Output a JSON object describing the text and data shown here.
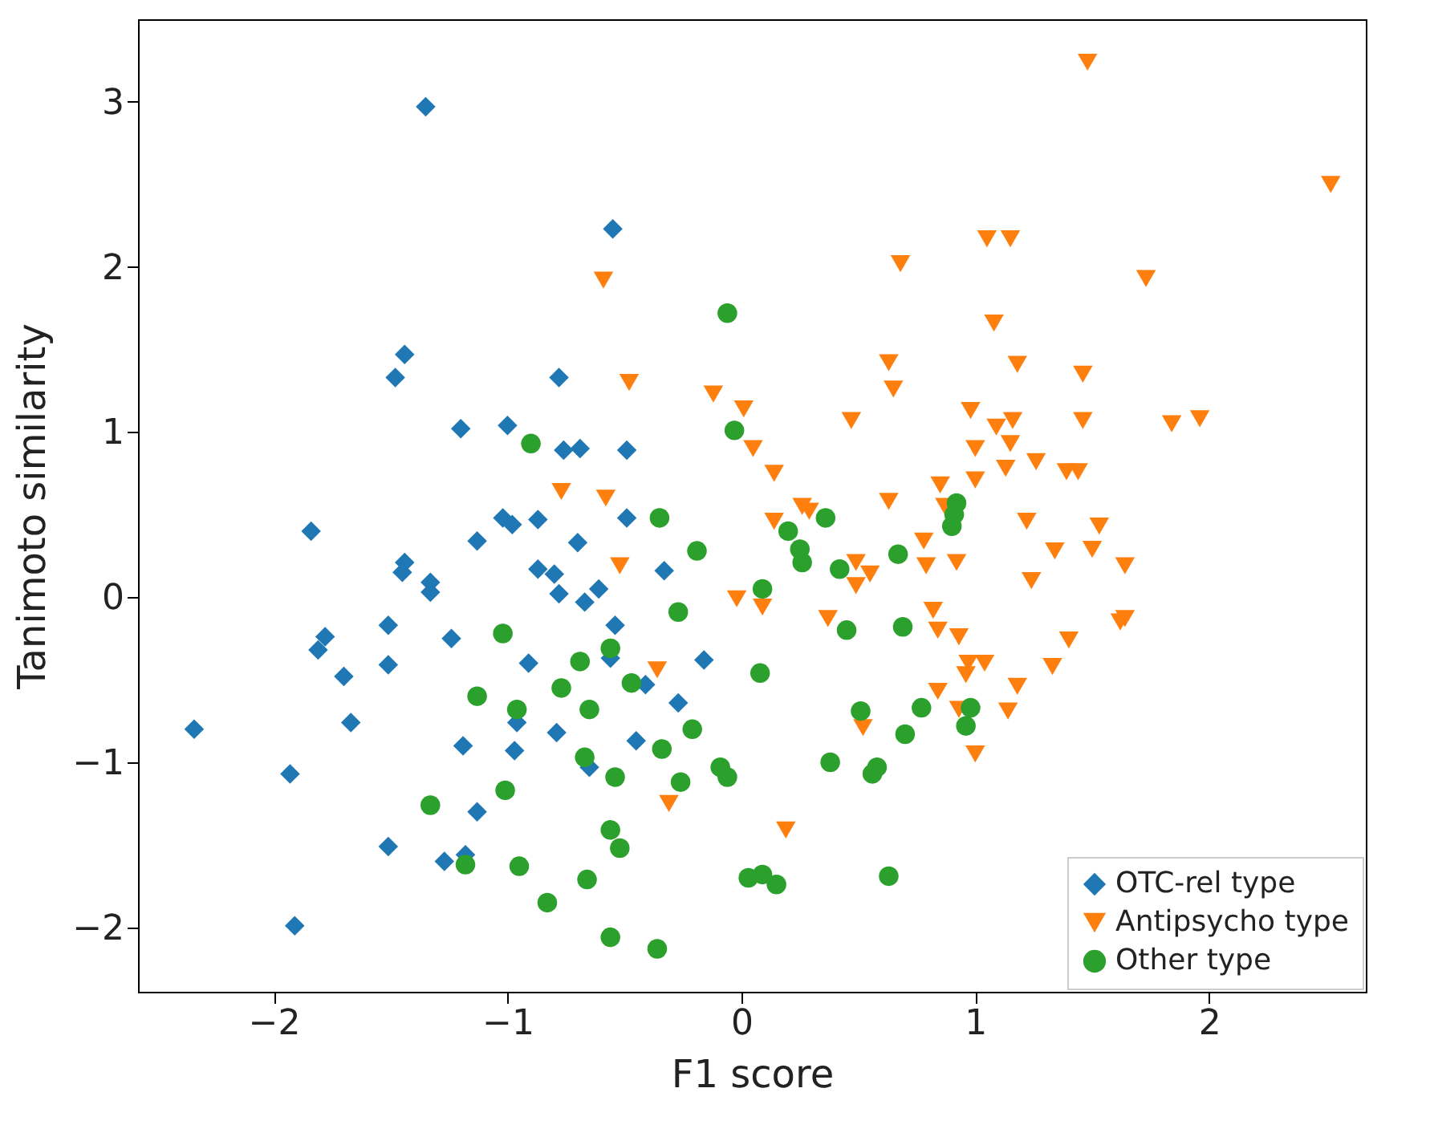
{
  "chart_data": {
    "type": "scatter",
    "xlabel": "F1 score",
    "ylabel": "Tanimoto similarity",
    "xlim": [
      -2.58,
      2.67
    ],
    "ylim": [
      -2.39,
      3.5
    ],
    "xticks": [
      -2,
      -1,
      0,
      1,
      2
    ],
    "yticks": [
      -2,
      -1,
      0,
      1,
      2,
      3
    ],
    "grid": false,
    "legend": "bottom right",
    "series": [
      {
        "name": "OTC-rel type",
        "color": "#1f77b4",
        "marker": "diamond",
        "x": [
          -1.35,
          -0.55,
          -1.44,
          -1.48,
          -0.78,
          -1.2,
          -1.0,
          -0.76,
          -0.69,
          -0.49,
          -1.84,
          -1.02,
          -0.98,
          -0.87,
          -0.49,
          -1.13,
          -0.7,
          -1.44,
          -1.45,
          -0.87,
          -0.8,
          -1.33,
          -1.33,
          -0.78,
          -0.67,
          -0.61,
          -0.33,
          -0.54,
          -1.51,
          -1.78,
          -1.81,
          -1.24,
          -1.51,
          -1.7,
          -0.91,
          -0.56,
          -0.41,
          -0.16,
          -0.27,
          -2.34,
          -1.67,
          -0.96,
          -0.79,
          -0.45,
          -1.19,
          -0.97,
          -0.65,
          -1.93,
          -1.13,
          -1.51,
          -1.27,
          -1.18,
          -1.91
        ],
        "values": [
          2.97,
          2.23,
          1.47,
          1.33,
          1.33,
          1.02,
          1.04,
          0.89,
          0.9,
          0.89,
          0.4,
          0.48,
          0.44,
          0.47,
          0.48,
          0.34,
          0.33,
          0.21,
          0.15,
          0.17,
          0.14,
          0.09,
          0.03,
          0.02,
          -0.03,
          0.05,
          0.16,
          -0.17,
          -0.17,
          -0.24,
          -0.32,
          -0.25,
          -0.41,
          -0.48,
          -0.4,
          -0.37,
          -0.53,
          -0.38,
          -0.64,
          -0.8,
          -0.76,
          -0.76,
          -0.82,
          -0.87,
          -0.9,
          -0.93,
          -1.03,
          -1.07,
          -1.3,
          -1.51,
          -1.6,
          -1.56,
          -1.99
        ]
      },
      {
        "name": "Antipsycho type",
        "color": "#ff7f0e",
        "marker": "triangle",
        "x": [
          -0.59,
          -0.48,
          -0.12,
          0.01,
          0.05,
          -0.77,
          -0.58,
          1.48,
          2.52,
          1.05,
          1.15,
          0.68,
          1.73,
          1.08,
          0.63,
          0.65,
          1.18,
          1.46,
          0.47,
          0.98,
          1.09,
          1.16,
          1.46,
          1.84,
          1.96,
          0.14,
          1.0,
          1.15,
          1.13,
          1.26,
          1.39,
          1.44,
          1.0,
          0.85,
          0.63,
          0.87,
          0.26,
          0.29,
          0.14,
          1.22,
          1.53,
          0.78,
          1.34,
          1.5,
          1.64,
          0.79,
          0.92,
          0.49,
          0.55,
          0.49,
          1.24,
          -0.02,
          0.09,
          0.37,
          0.82,
          0.84,
          0.93,
          1.62,
          1.64,
          1.4,
          0.97,
          1.04,
          0.96,
          1.33,
          1.18,
          1.14,
          0.84,
          0.93,
          0.52,
          1.0,
          0.19,
          -0.52,
          -0.36,
          -0.31
        ],
        "values": [
          1.92,
          1.3,
          1.23,
          1.14,
          0.9,
          0.64,
          0.6,
          3.24,
          2.5,
          2.17,
          2.17,
          2.02,
          1.93,
          1.66,
          1.42,
          1.26,
          1.41,
          1.35,
          1.07,
          1.13,
          1.03,
          1.07,
          1.07,
          1.05,
          1.08,
          0.75,
          0.9,
          0.93,
          0.78,
          0.82,
          0.76,
          0.76,
          0.71,
          0.68,
          0.58,
          0.55,
          0.55,
          0.52,
          0.46,
          0.46,
          0.43,
          0.34,
          0.28,
          0.29,
          0.19,
          0.19,
          0.21,
          0.21,
          0.14,
          0.07,
          0.1,
          -0.01,
          -0.06,
          -0.13,
          -0.08,
          -0.2,
          -0.24,
          -0.15,
          -0.13,
          -0.26,
          -0.4,
          -0.4,
          -0.47,
          -0.42,
          -0.54,
          -0.69,
          -0.57,
          -0.68,
          -0.79,
          -0.95,
          -1.41,
          0.19,
          -0.44,
          -1.25
        ]
      },
      {
        "name": "Other type",
        "color": "#2ca02c",
        "marker": "circle",
        "x": [
          -0.9,
          -0.06,
          -0.03,
          -0.35,
          -0.19,
          0.09,
          -0.27,
          -1.02,
          -0.69,
          -0.56,
          -0.47,
          -0.77,
          -1.13,
          -0.96,
          -0.65,
          -0.21,
          -0.34,
          0.08,
          -0.67,
          -0.54,
          -0.26,
          -0.09,
          -0.06,
          -1.01,
          -1.33,
          -0.56,
          -0.52,
          -1.18,
          -0.95,
          -0.66,
          -0.83,
          -0.56,
          -0.36,
          0.03,
          0.09,
          0.15,
          0.92,
          0.91,
          0.9,
          0.36,
          0.2,
          0.25,
          0.26,
          0.67,
          0.42,
          0.45,
          0.69,
          0.51,
          0.77,
          0.98,
          0.96,
          0.7,
          0.38,
          0.58,
          0.56,
          0.63
        ],
        "values": [
          0.93,
          1.72,
          1.01,
          0.48,
          0.28,
          0.05,
          -0.09,
          -0.22,
          -0.39,
          -0.31,
          -0.52,
          -0.55,
          -0.6,
          -0.68,
          -0.68,
          -0.8,
          -0.92,
          -0.46,
          -0.97,
          -1.09,
          -1.12,
          -1.03,
          -1.09,
          -1.17,
          -1.26,
          -1.41,
          -1.52,
          -1.62,
          -1.63,
          -1.71,
          -1.85,
          -2.06,
          -2.13,
          -1.7,
          -1.68,
          -1.74,
          0.57,
          0.5,
          0.43,
          0.48,
          0.4,
          0.29,
          0.21,
          0.26,
          0.17,
          -0.2,
          -0.18,
          -0.69,
          -0.67,
          -0.67,
          -0.78,
          -0.83,
          -1.0,
          -1.03,
          -1.07,
          -1.69
        ]
      }
    ]
  }
}
